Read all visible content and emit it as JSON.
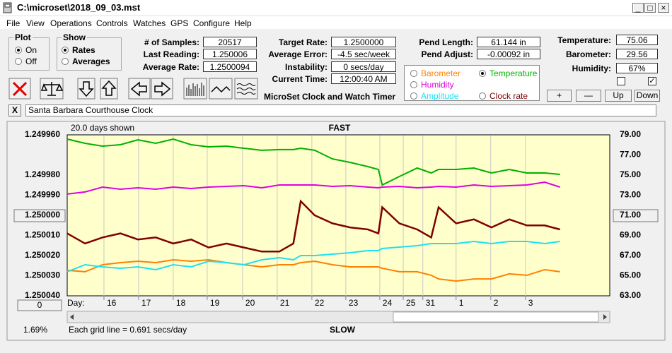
{
  "window": {
    "title": "C:\\microset\\2018_09_03.mst"
  },
  "menu": [
    "File",
    "View",
    "Operations",
    "Controls",
    "Watches",
    "GPS",
    "Configure",
    "Help"
  ],
  "plot_group": {
    "title": "Plot",
    "options": [
      "On",
      "Off"
    ]
  },
  "show_group": {
    "title": "Show",
    "options": [
      "Rates",
      "Averages"
    ]
  },
  "fields": [
    {
      "label": "# of Samples:",
      "value": "20517"
    },
    {
      "label": "Last Reading:",
      "value": "1.250006"
    },
    {
      "label": "Average Rate:",
      "value": "1.2500094"
    },
    {
      "label": "Target Rate:",
      "value": "1.2500000"
    },
    {
      "label": "Average Error:",
      "value": "-4.5 sec/week"
    },
    {
      "label": "Instability:",
      "value": "0 secs/day"
    },
    {
      "label": "Current Time:",
      "value": "12:00:40 AM"
    },
    {
      "label": "Pend Length:",
      "value": "61.144 in"
    },
    {
      "label": "Pend Adjust:",
      "value": "-0.00092 in"
    },
    {
      "label": "Temperature:",
      "value": "75.06"
    },
    {
      "label": "Barometer:",
      "value": "29.56"
    },
    {
      "label": "Humidity:",
      "value": "67%"
    }
  ],
  "app_title": "MicroSet Clock and Watch Timer",
  "buttons": [
    "+",
    "—",
    "Up",
    "Down"
  ],
  "close_button": "X",
  "clock_name": "Santa Barbara Courthouse Clock",
  "chart_data": {
    "type": "line",
    "span_label": "20.0 days shown",
    "top_annotation": "FAST",
    "bottom_annotation": "SLOW",
    "x_label": "Day:",
    "grid_note": "Each grid line = 0.691 secs/day",
    "percent_label": "1.69%",
    "reset_button": "0",
    "grid": true,
    "xlim": [
      0,
      15.5
    ],
    "xticks": [
      {
        "value": 1.05,
        "label": "16"
      },
      {
        "value": 2.04,
        "label": "17"
      },
      {
        "value": 3.03,
        "label": "18"
      },
      {
        "value": 4.0,
        "label": "19"
      },
      {
        "value": 5.01,
        "label": "20"
      },
      {
        "value": 6.0,
        "label": "21"
      },
      {
        "value": 6.99,
        "label": "22"
      },
      {
        "value": 7.96,
        "label": "23"
      },
      {
        "value": 8.93,
        "label": "24"
      },
      {
        "value": 9.6,
        "label": "25"
      },
      {
        "value": 10.16,
        "label": "31"
      },
      {
        "value": 11.11,
        "label": "1"
      },
      {
        "value": 12.1,
        "label": "2"
      },
      {
        "value": 13.09,
        "label": "3"
      }
    ],
    "ylim": [
      1.25004,
      1.24996
    ],
    "yticks": [
      {
        "value": 1.24996,
        "label": "1.249960"
      },
      {
        "value": 1.24998,
        "label": "1.249980"
      },
      {
        "value": 1.24999,
        "label": "1.249990"
      },
      {
        "value": 1.25,
        "label": "1.250000"
      },
      {
        "value": 1.25001,
        "label": "1.250010"
      },
      {
        "value": 1.25002,
        "label": "1.250020"
      },
      {
        "value": 1.25003,
        "label": "1.250030"
      },
      {
        "value": 1.25004,
        "label": "1.250040"
      }
    ],
    "y2lim": [
      63,
      79
    ],
    "y2ticks": [
      {
        "value": 79,
        "label": "79.00"
      },
      {
        "value": 77,
        "label": "77.00"
      },
      {
        "value": 75,
        "label": "75.00"
      },
      {
        "value": 73,
        "label": "73.00"
      },
      {
        "value": 71,
        "label": "71.00"
      },
      {
        "value": 69,
        "label": "69.00"
      },
      {
        "value": 67,
        "label": "67.00"
      },
      {
        "value": 65,
        "label": "65.00"
      },
      {
        "value": 63,
        "label": "63.00"
      }
    ],
    "x": [
      0,
      0.51,
      1.01,
      1.52,
      2.02,
      2.53,
      3.03,
      3.54,
      4.04,
      4.55,
      5.05,
      5.56,
      6.06,
      6.46,
      6.67,
      7.07,
      7.58,
      8.08,
      8.59,
      8.89,
      9.0,
      9.49,
      10.0,
      10.4,
      10.61,
      11.11,
      11.62,
      12.12,
      12.63,
      13.13,
      13.64,
      14.08
    ],
    "series": [
      {
        "name": "Barometer",
        "color": "#ff8000",
        "axis": "y2",
        "values": [
          65.53,
          65.39,
          66.09,
          66.3,
          66.44,
          66.3,
          66.58,
          66.44,
          66.58,
          66.3,
          66.09,
          65.88,
          66.09,
          66.09,
          66.3,
          66.44,
          66.09,
          65.88,
          65.88,
          65.88,
          65.74,
          65.39,
          65.39,
          65.04,
          64.68,
          64.47,
          64.68,
          64.68,
          65.18,
          65.04,
          65.6,
          65.39
        ]
      },
      {
        "name": "Temperature",
        "color": "#00b000",
        "axis": "y2",
        "values": [
          78.58,
          78.16,
          77.88,
          78.02,
          78.51,
          78.16,
          78.58,
          78.02,
          77.81,
          77.88,
          77.67,
          77.46,
          77.53,
          77.53,
          77.67,
          77.46,
          76.61,
          76.26,
          75.84,
          75.56,
          74.02,
          74.86,
          75.7,
          75.21,
          75.56,
          75.56,
          75.7,
          75.21,
          75.56,
          75.21,
          75.21,
          75.07
        ]
      },
      {
        "name": "Humidity",
        "color": "#e000e0",
        "axis": "y2",
        "values": [
          73.11,
          73.32,
          73.81,
          73.6,
          73.74,
          73.6,
          73.81,
          73.67,
          73.81,
          73.88,
          73.95,
          73.74,
          74.02,
          74.02,
          74.02,
          74.02,
          73.88,
          73.95,
          73.81,
          73.74,
          73.81,
          73.88,
          73.74,
          73.81,
          73.88,
          73.81,
          74.02,
          73.88,
          73.95,
          74.02,
          74.3,
          73.81
        ]
      },
      {
        "name": "Amplitude",
        "color": "#20e0f0",
        "axis": "y2",
        "values": [
          65.39,
          66.09,
          65.88,
          65.74,
          65.88,
          65.6,
          66.09,
          65.88,
          66.44,
          66.3,
          66.09,
          66.58,
          66.79,
          66.58,
          67.0,
          67.0,
          67.14,
          67.28,
          67.49,
          67.49,
          67.7,
          67.84,
          67.98,
          68.19,
          68.19,
          68.19,
          68.4,
          68.19,
          68.4,
          68.4,
          68.19,
          68.4
        ]
      },
      {
        "name": "Clock rate",
        "color": "#800000",
        "axis": "y",
        "values": [
          1.250009,
          1.250014,
          1.250011,
          1.250009,
          1.250012,
          1.250011,
          1.250014,
          1.250012,
          1.250016,
          1.250014,
          1.250016,
          1.250018,
          1.250018,
          1.250014,
          1.249993,
          1.25,
          1.250004,
          1.250006,
          1.250007,
          1.250009,
          1.249996,
          1.250004,
          1.250007,
          1.250011,
          1.249996,
          1.250004,
          1.250002,
          1.250006,
          1.250002,
          1.250005,
          1.250005,
          1.250007
        ]
      }
    ]
  }
}
